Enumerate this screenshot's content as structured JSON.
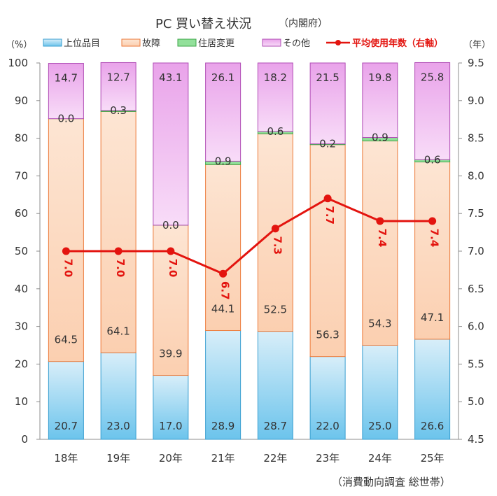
{
  "title": "PC 買い替え状況",
  "subtitle": "（内閣府）",
  "left_unit": "（%）",
  "right_unit": "（年）",
  "source": "（消費動向調査 総世帯）",
  "colors": {
    "upgrade_top": "#d8eef9",
    "upgrade_bottom": "#6cc4ec",
    "upgrade_edge": "#3a9fd0",
    "failure_top": "#fde5d3",
    "failure_bottom": "#fbcfb0",
    "failure_edge": "#ec7a3a",
    "moving": "#92e09a",
    "moving_edge": "#3da64a",
    "other_top": "#e9a3ea",
    "other_bottom": "#f8dcf8",
    "other_edge": "#b04cb5",
    "line": "#e3140f"
  },
  "chart_data": {
    "type": "bar",
    "stacked": true,
    "categories": [
      "18年",
      "19年",
      "20年",
      "21年",
      "22年",
      "23年",
      "24年",
      "25年"
    ],
    "series": [
      {
        "name": "上位品目",
        "values": [
          20.7,
          23.0,
          17.0,
          28.9,
          28.7,
          22.0,
          25.0,
          26.6
        ]
      },
      {
        "name": "故障",
        "values": [
          64.5,
          64.1,
          39.9,
          44.1,
          52.5,
          56.3,
          54.3,
          47.1
        ]
      },
      {
        "name": "住居変更",
        "values": [
          0.0,
          0.3,
          0.0,
          0.9,
          0.6,
          0.2,
          0.9,
          0.6
        ]
      },
      {
        "name": "その他",
        "values": [
          14.7,
          12.7,
          43.1,
          26.1,
          18.2,
          21.5,
          19.8,
          25.8
        ]
      }
    ],
    "line_series": {
      "name": "平均使用年数（右軸）",
      "axis": "right",
      "values": [
        7.0,
        7.0,
        7.0,
        6.7,
        7.3,
        7.7,
        7.4,
        7.4
      ]
    },
    "ylim": [
      0,
      100
    ],
    "yticks": [
      "0",
      "10",
      "20",
      "30",
      "40",
      "50",
      "60",
      "70",
      "80",
      "90",
      "100"
    ],
    "y2lim": [
      4.5,
      9.5
    ],
    "y2ticks": [
      "4.5",
      "5.0",
      "5.5",
      "6.0",
      "6.5",
      "7.0",
      "7.5",
      "8.0",
      "8.5",
      "9.0",
      "9.5"
    ],
    "legend_position": "top",
    "grid": false
  }
}
